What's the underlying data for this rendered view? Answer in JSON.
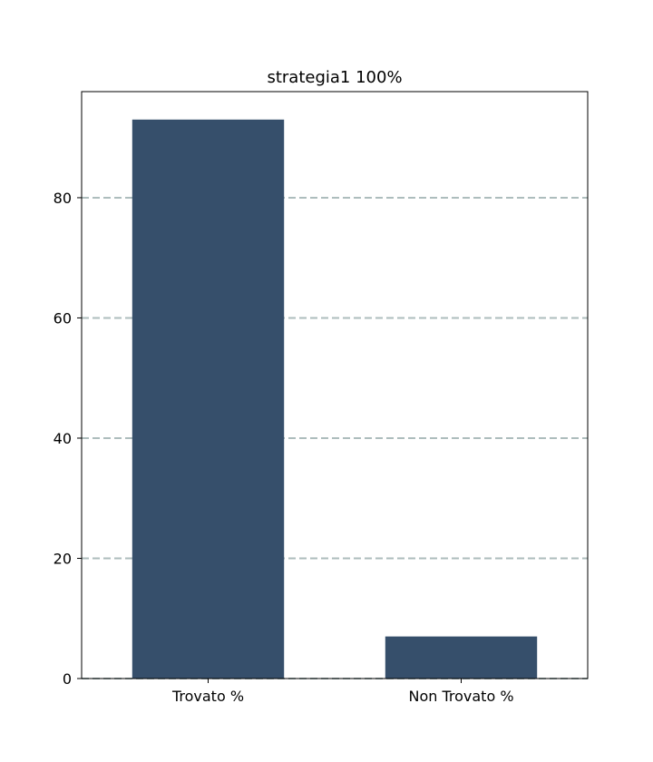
{
  "chart_data": {
    "type": "bar",
    "title": "strategia1 100%",
    "xlabel": "",
    "ylabel": "",
    "categories": [
      "Trovato %",
      "Non Trovato %"
    ],
    "values": [
      93.0,
      7.0
    ],
    "ylim": [
      0,
      97.65
    ],
    "yticks": [
      0,
      20,
      40,
      60,
      80
    ],
    "grid": "y-dashed",
    "legend": "none",
    "colors": {
      "bar": "#364f6b",
      "grid": "#adbdbd",
      "axis": "#000000"
    }
  }
}
